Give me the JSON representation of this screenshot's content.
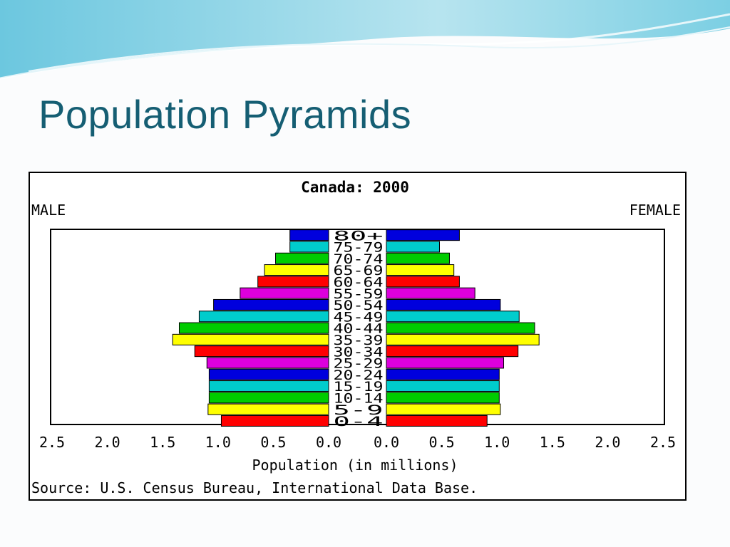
{
  "slide": {
    "title": "Population Pyramids"
  },
  "chart_data": {
    "type": "bar",
    "title": "Canada: 2000",
    "left_label": "MALE",
    "right_label": "FEMALE",
    "xlabel": "Population (in millions)",
    "source": "Source: U.S. Census Bureau, International Data Base.",
    "xlim": [
      0,
      2.5
    ],
    "ticks": [
      "2.5",
      "2.0",
      "1.5",
      "1.0",
      "0.5",
      "0.0"
    ],
    "ticks_right": [
      "0.0",
      "0.5",
      "1.0",
      "1.5",
      "2.0",
      "2.5"
    ],
    "categories": [
      "80+",
      "75-79",
      "70-74",
      "65-69",
      "60-64",
      "55-59",
      "50-54",
      "45-49",
      "40-44",
      "35-39",
      "30-34",
      "25-29",
      "20-24",
      "15-19",
      "10-14",
      "5-9",
      "0-4"
    ],
    "series": [
      {
        "name": "MALE",
        "values": [
          0.35,
          0.35,
          0.48,
          0.58,
          0.64,
          0.8,
          1.04,
          1.17,
          1.35,
          1.41,
          1.21,
          1.1,
          1.08,
          1.08,
          1.08,
          1.09,
          0.97
        ]
      },
      {
        "name": "FEMALE",
        "values": [
          0.66,
          0.48,
          0.57,
          0.61,
          0.66,
          0.8,
          1.03,
          1.2,
          1.34,
          1.38,
          1.19,
          1.06,
          1.02,
          1.02,
          1.02,
          1.03,
          0.91
        ]
      }
    ],
    "colors": [
      "#ff0000",
      "#ffff00",
      "#00cc00",
      "#00cccc",
      "#0000dd",
      "#dd00dd"
    ]
  }
}
